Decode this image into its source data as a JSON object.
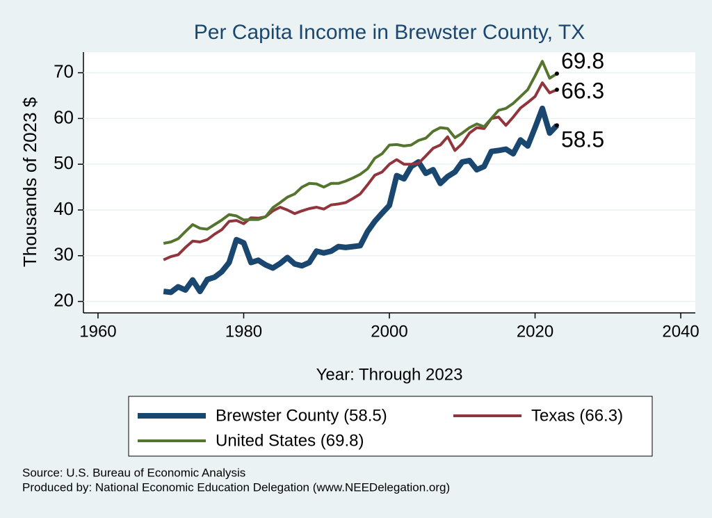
{
  "chart_data": {
    "type": "line",
    "title": "Per Capita Income in Brewster County, TX",
    "x_label": "Year: Through 2023",
    "y_label": "Thousands of 2023 $",
    "x": [
      1969,
      1970,
      1971,
      1972,
      1973,
      1974,
      1975,
      1976,
      1977,
      1978,
      1979,
      1980,
      1981,
      1982,
      1983,
      1984,
      1985,
      1986,
      1987,
      1988,
      1989,
      1990,
      1991,
      1992,
      1993,
      1994,
      1995,
      1996,
      1997,
      1998,
      1999,
      2000,
      2001,
      2002,
      2003,
      2004,
      2005,
      2006,
      2007,
      2008,
      2009,
      2010,
      2011,
      2012,
      2013,
      2014,
      2015,
      2016,
      2017,
      2018,
      2019,
      2020,
      2021,
      2022,
      2023
    ],
    "series": [
      {
        "name": "Brewster County (58.5)",
        "color": "#1a476f",
        "width": 8,
        "values": [
          22.2,
          22.0,
          23.2,
          22.5,
          24.7,
          22.2,
          24.8,
          25.3,
          26.5,
          28.5,
          33.5,
          32.8,
          28.5,
          29.0,
          28.0,
          27.3,
          28.3,
          29.6,
          28.2,
          27.8,
          28.5,
          31.0,
          30.6,
          31.0,
          32.0,
          31.8,
          32.0,
          32.2,
          35.3,
          37.5,
          39.3,
          41.0,
          47.5,
          46.8,
          49.5,
          50.5,
          48.0,
          48.8,
          45.8,
          47.3,
          48.3,
          50.5,
          50.8,
          48.8,
          49.5,
          52.8,
          53.0,
          53.3,
          52.3,
          55.3,
          54.0,
          58.0,
          62.2,
          56.8,
          58.5
        ]
      },
      {
        "name": "Texas (66.3)",
        "color": "#90353b",
        "width": 4,
        "values": [
          29.1,
          29.8,
          30.2,
          31.8,
          33.2,
          33.0,
          33.5,
          34.7,
          35.7,
          37.5,
          37.7,
          37.0,
          38.3,
          38.2,
          38.5,
          39.8,
          40.6,
          40.0,
          39.2,
          39.8,
          40.3,
          40.6,
          40.2,
          41.1,
          41.3,
          41.6,
          42.5,
          43.5,
          45.5,
          47.6,
          48.3,
          50.0,
          51.0,
          50.0,
          50.0,
          50.2,
          51.8,
          53.5,
          54.2,
          56.0,
          53.0,
          54.5,
          56.8,
          58.0,
          57.8,
          60.0,
          60.3,
          58.5,
          60.3,
          62.3,
          63.5,
          64.8,
          67.8,
          65.6,
          66.3
        ]
      },
      {
        "name": "United States (69.8)",
        "color": "#55752f",
        "width": 4,
        "values": [
          32.7,
          33.0,
          33.7,
          35.3,
          36.8,
          36.0,
          35.8,
          36.8,
          37.8,
          39.0,
          38.7,
          37.8,
          37.9,
          37.9,
          38.5,
          40.5,
          41.6,
          42.8,
          43.5,
          45.0,
          45.8,
          45.7,
          45.0,
          45.8,
          45.8,
          46.3,
          47.0,
          47.8,
          49.0,
          51.3,
          52.3,
          54.2,
          54.3,
          54.0,
          54.2,
          55.2,
          55.7,
          57.2,
          58.0,
          57.8,
          55.8,
          56.8,
          58.0,
          58.8,
          58.2,
          60.0,
          61.8,
          62.2,
          63.3,
          64.8,
          66.3,
          69.3,
          72.5,
          68.8,
          69.8
        ]
      }
    ],
    "xlim": [
      1958,
      2042
    ],
    "xticks": [
      1960,
      1980,
      2000,
      2020,
      2040
    ],
    "ylim": [
      17.5,
      74.5
    ],
    "yticks": [
      20,
      30,
      40,
      50,
      60,
      70
    ],
    "grid": true,
    "notes": [
      "Source: U.S. Bureau of Economic Analysis",
      "Produced by: National Economic Education Delegation (www.NEEDelegation.org)"
    ]
  }
}
